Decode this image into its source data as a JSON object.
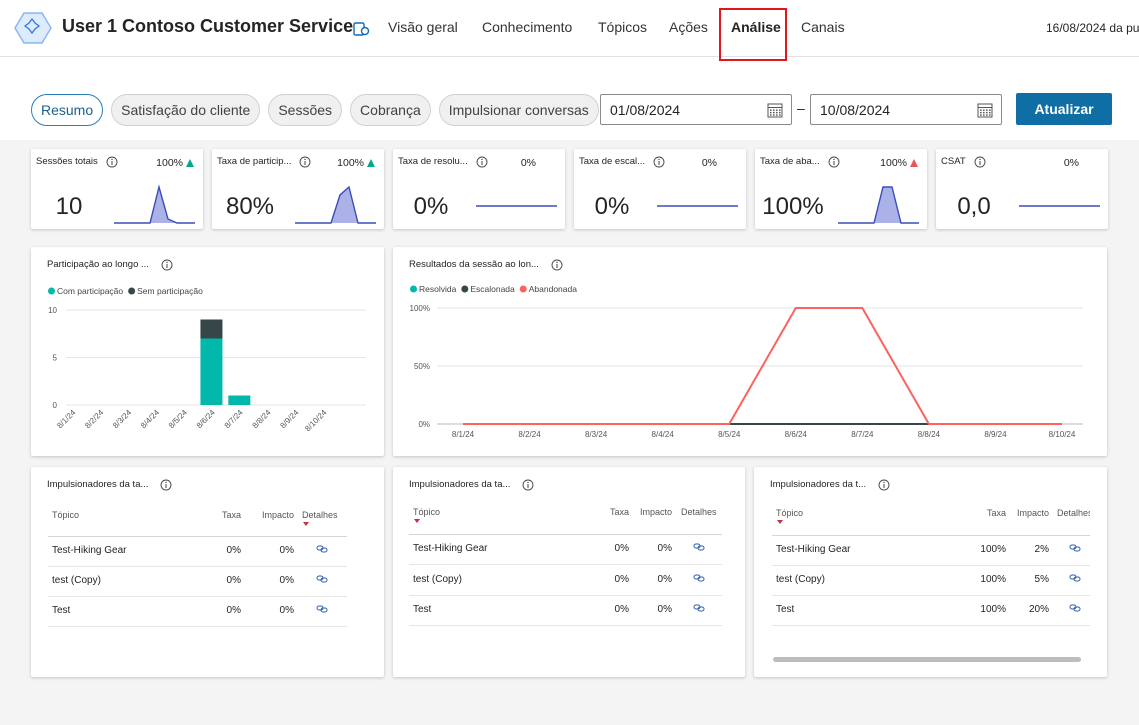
{
  "header": {
    "title": "User 1 Contoso Customer Service",
    "nav": [
      {
        "label": "Visão geral"
      },
      {
        "label": "Conhecimento"
      },
      {
        "label": "Tópicos"
      },
      {
        "label": "Ações"
      },
      {
        "label": "Análise",
        "selected": true
      },
      {
        "label": "Canais"
      }
    ],
    "timestamp": "16/08/2024 da pu"
  },
  "filters": {
    "tabs": [
      {
        "label": "Resumo",
        "selected": true
      },
      {
        "label": "Satisfação do cliente"
      },
      {
        "label": "Sessões"
      },
      {
        "label": "Cobrança"
      },
      {
        "label": "Impulsionar conversas"
      }
    ],
    "start_date": "01/08/2024",
    "separator": "–",
    "end_date": "10/08/2024",
    "button": "Atualizar"
  },
  "kpis": [
    {
      "label": "Sessões totais",
      "change": "100%",
      "trend_color": "#00a88f",
      "value": "10",
      "spark": [
        0,
        0,
        0,
        0,
        0,
        9,
        1,
        0,
        0,
        0
      ]
    },
    {
      "label": "Taxa de particip...",
      "change": "100%",
      "trend_color": "#00a88f",
      "value": "80%",
      "spark": [
        0,
        0,
        0,
        0,
        0,
        78,
        100,
        0,
        0,
        0
      ]
    },
    {
      "label": "Taxa de resolu...",
      "change": "0%",
      "value": "0%",
      "spark": [
        0,
        0,
        0,
        0,
        0,
        0,
        0,
        0,
        0,
        0
      ]
    },
    {
      "label": "Taxa de escal...",
      "change": "0%",
      "value": "0%",
      "spark": [
        0,
        0,
        0,
        0,
        0,
        0,
        0,
        0,
        0,
        0
      ]
    },
    {
      "label": "Taxa de aba...",
      "change": "100%",
      "trend_color": "#e8555a",
      "value": "100%",
      "spark": [
        0,
        0,
        0,
        0,
        0,
        100,
        100,
        0,
        0,
        0
      ]
    },
    {
      "label": "CSAT",
      "change": "0%",
      "value": "0,0",
      "spark": [
        0,
        0,
        0,
        0,
        0,
        0,
        0,
        0,
        0,
        0
      ]
    }
  ],
  "chart_data": [
    {
      "type": "bar",
      "stacked": true,
      "title": "Participação ao longo ...",
      "categories": [
        "8/1/24",
        "8/2/24",
        "8/3/24",
        "8/4/24",
        "8/5/24",
        "8/6/24",
        "8/7/24",
        "8/8/24",
        "8/9/24",
        "8/10/24"
      ],
      "series": [
        {
          "name": "Com participação",
          "color": "#01b8aa",
          "values": [
            0,
            0,
            0,
            0,
            0,
            7,
            1,
            0,
            0,
            0
          ]
        },
        {
          "name": "Sem participação",
          "color": "#374649",
          "values": [
            0,
            0,
            0,
            0,
            0,
            2,
            0,
            0,
            0,
            0
          ]
        }
      ],
      "ylim": [
        0,
        10
      ],
      "yticks": [
        0,
        5,
        10
      ],
      "grid": true
    },
    {
      "type": "line",
      "title": "Resultados da sessão ao lon...",
      "categories": [
        "8/1/24",
        "8/2/24",
        "8/3/24",
        "8/4/24",
        "8/5/24",
        "8/6/24",
        "8/7/24",
        "8/8/24",
        "8/9/24",
        "8/10/24"
      ],
      "series": [
        {
          "name": "Resolvida",
          "color": "#01b8aa",
          "values": [
            0,
            0,
            0,
            0,
            0,
            0,
            0,
            0,
            0,
            0
          ]
        },
        {
          "name": "Escalonada",
          "color": "#374649",
          "values": [
            0,
            0,
            0,
            0,
            0,
            0,
            0,
            0,
            0,
            0
          ]
        },
        {
          "name": "Abandonada",
          "color": "#fd625e",
          "values": [
            0,
            0,
            0,
            0,
            0,
            100,
            100,
            0,
            0,
            0
          ]
        }
      ],
      "ylim": [
        0,
        100
      ],
      "yticks": [
        {
          "value": 0,
          "label": "0%"
        },
        {
          "value": 50,
          "label": "50%"
        },
        {
          "value": 100,
          "label": "100%"
        }
      ],
      "grid": true
    }
  ],
  "tables": [
    {
      "title": "Impulsionadores da ta...",
      "columns": [
        "Tópico",
        "Taxa",
        "Impacto",
        "Detalhes"
      ],
      "rows": [
        [
          "Test-Hiking Gear",
          "0%",
          "0%"
        ],
        [
          "test (Copy)",
          "0%",
          "0%"
        ],
        [
          "Test",
          "0%",
          "0%"
        ]
      ]
    },
    {
      "title": "Impulsionadores da ta...",
      "columns": [
        "Tópico",
        "Taxa",
        "Impacto",
        "Detalhes"
      ],
      "rows": [
        [
          "Test-Hiking Gear",
          "0%",
          "0%"
        ],
        [
          "test (Copy)",
          "0%",
          "0%"
        ],
        [
          "Test",
          "0%",
          "0%"
        ]
      ]
    },
    {
      "title": "Impulsionadores da t...",
      "columns": [
        "Tópico",
        "Taxa",
        "Impacto",
        "Detalhes"
      ],
      "rows": [
        [
          "Test-Hiking Gear",
          "100%",
          "2%"
        ],
        [
          "test (Copy)",
          "100%",
          "5%"
        ],
        [
          "Test",
          "100%",
          "20%"
        ]
      ]
    }
  ]
}
